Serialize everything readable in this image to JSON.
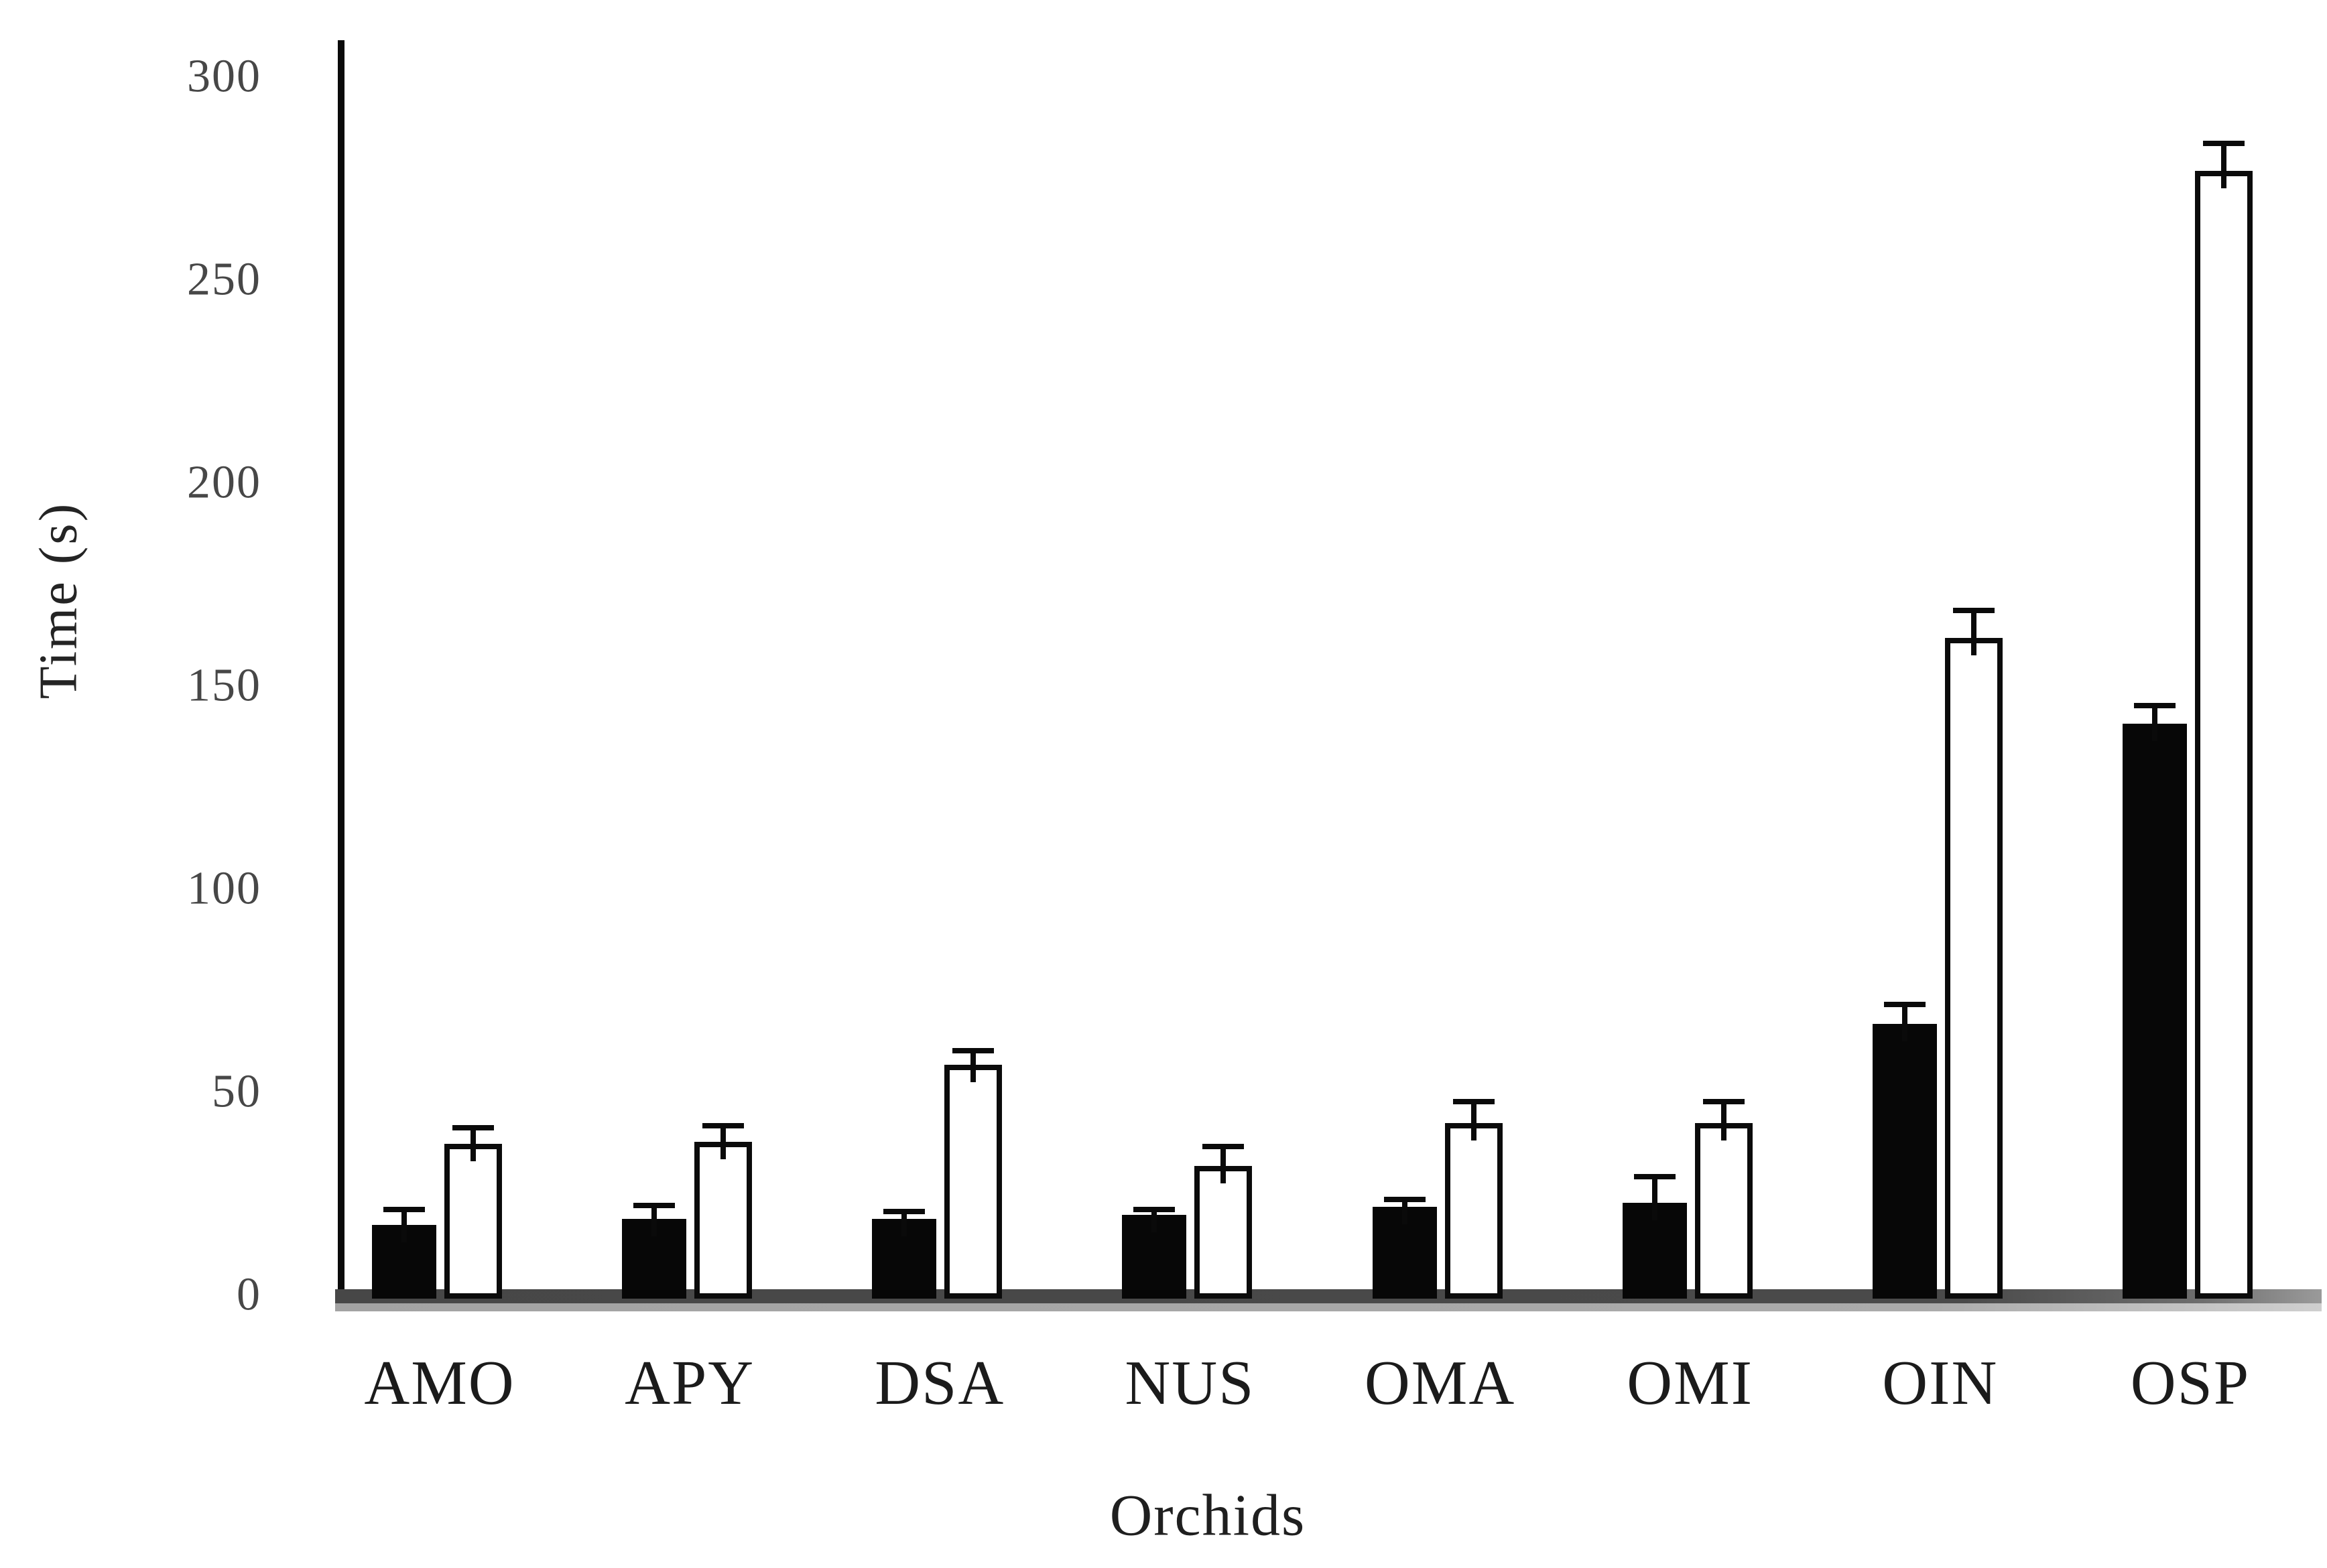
{
  "figure": {
    "background": "#ffffff",
    "axis_color": "#0a0a0a",
    "baseline_color": "#4a4a4a",
    "baseline_shadow_color": "#a8a8a8"
  },
  "chart_data": {
    "type": "bar",
    "title": "",
    "xlabel": "Orchids",
    "ylabel": "Time (s)",
    "categories": [
      "AMO",
      "APY",
      "DSA",
      "NUS",
      "OMA",
      "OMI",
      "OIN",
      "OSP"
    ],
    "series": [
      {
        "name": "filled-black-bars",
        "fill": "#070707",
        "values": [
          17.5,
          19,
          19,
          20,
          22,
          23,
          67,
          141
        ],
        "errors_plus": [
          4.5,
          4,
          2.5,
          2,
          2.5,
          7,
          5.5,
          5
        ]
      },
      {
        "name": "open-white-bars",
        "fill": "#ffffff",
        "outline": "#0b0b0b",
        "values": [
          37.5,
          38,
          57,
          32,
          42.5,
          42.5,
          162,
          277
        ],
        "errors_plus": [
          4.5,
          4.5,
          4,
          5.5,
          6,
          6,
          7.5,
          7.5
        ]
      }
    ],
    "yticks": [
      0,
      50,
      100,
      150,
      200,
      250,
      300
    ],
    "ylim": [
      0,
      310
    ],
    "grid": false,
    "legend_position": "none",
    "error_bars": "upper-only"
  }
}
